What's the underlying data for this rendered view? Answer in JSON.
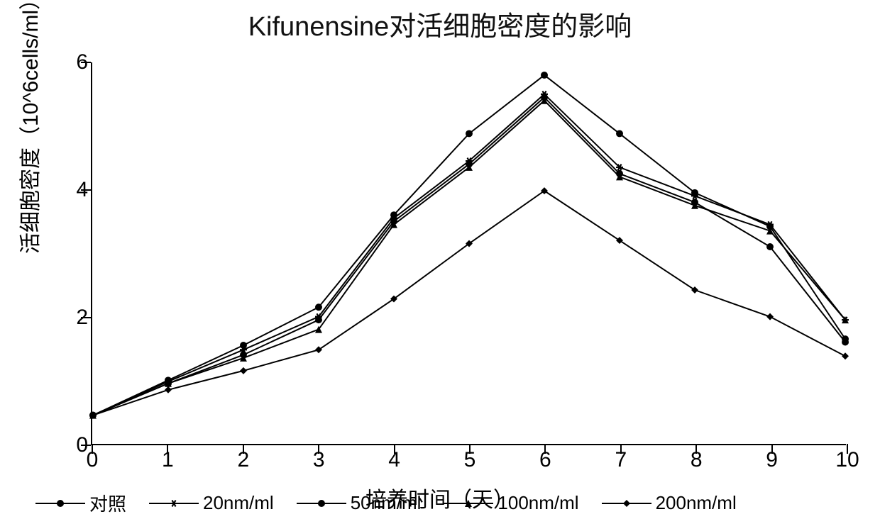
{
  "title": "Kifunensine对活细胞密度的影响",
  "chart": {
    "type": "line",
    "x_axis": {
      "label": "培养时间（天）",
      "min": 0,
      "max": 10,
      "ticks": [
        0,
        1,
        2,
        3,
        4,
        5,
        6,
        7,
        8,
        9,
        10
      ],
      "label_fontsize": 30
    },
    "y_axis": {
      "label": "活细胞密度（10^6cells/ml）",
      "min": 0,
      "max": 6,
      "ticks": [
        0,
        2,
        4,
        6
      ],
      "label_fontsize": 30
    },
    "colors": {
      "line": "#000000",
      "background": "#ffffff",
      "text": "#000000"
    },
    "line_width": 2,
    "marker_size": 10,
    "series": [
      {
        "name": "对照",
        "marker": "circle",
        "x": [
          0,
          1,
          2,
          3,
          4,
          5,
          6,
          7,
          8,
          9,
          10
        ],
        "y": [
          0.45,
          1.0,
          1.55,
          2.15,
          3.6,
          4.88,
          5.8,
          4.88,
          3.95,
          3.42,
          1.65
        ]
      },
      {
        "name": "20nm/ml",
        "marker": "star",
        "x": [
          0,
          1,
          2,
          3,
          4,
          5,
          6,
          7,
          8,
          9,
          10
        ],
        "y": [
          0.45,
          0.98,
          1.48,
          2.0,
          3.55,
          4.45,
          5.5,
          4.35,
          3.9,
          3.45,
          1.95
        ]
      },
      {
        "name": "50nm/ml",
        "marker": "circle",
        "x": [
          0,
          1,
          2,
          3,
          4,
          5,
          6,
          7,
          8,
          9,
          10
        ],
        "y": [
          0.45,
          0.95,
          1.4,
          1.95,
          3.5,
          4.4,
          5.45,
          4.25,
          3.8,
          3.1,
          1.6
        ]
      },
      {
        "name": "100nm/ml",
        "marker": "triangle",
        "x": [
          0,
          1,
          2,
          3,
          4,
          5,
          6,
          7,
          8,
          9,
          10
        ],
        "y": [
          0.45,
          0.95,
          1.35,
          1.8,
          3.45,
          4.35,
          5.4,
          4.2,
          3.75,
          3.35,
          1.95
        ]
      },
      {
        "name": "200nm/ml",
        "marker": "diamond",
        "x": [
          0,
          1,
          2,
          3,
          4,
          5,
          6,
          7,
          8,
          9,
          10
        ],
        "y": [
          0.45,
          0.85,
          1.15,
          1.48,
          2.28,
          3.15,
          3.98,
          3.2,
          2.42,
          2.0,
          1.38
        ]
      }
    ]
  }
}
